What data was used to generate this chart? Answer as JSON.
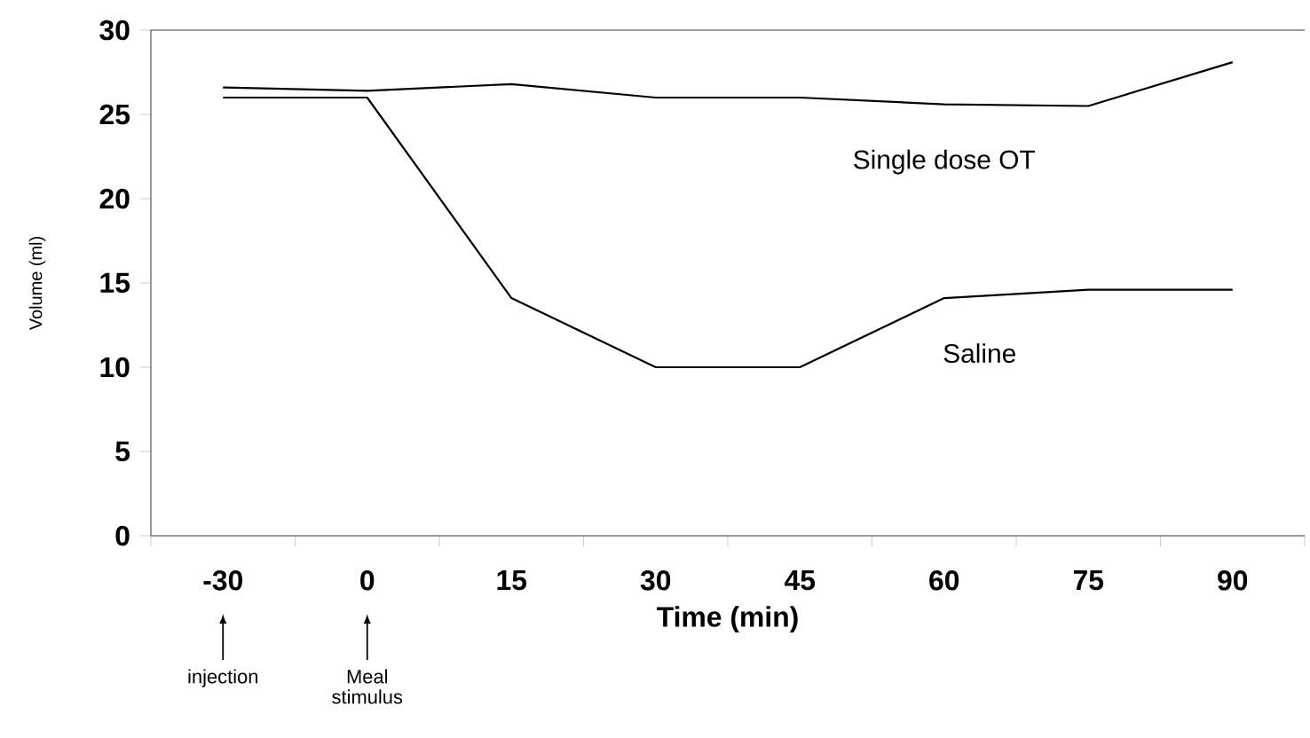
{
  "chart_data": {
    "type": "line",
    "xlabel": "Time (min)",
    "ylabel": "Volume (ml)",
    "categories": [
      "-30",
      "0",
      "15",
      "30",
      "45",
      "60",
      "75",
      "90"
    ],
    "series": [
      {
        "name": "Single dose OT",
        "color": "#000000",
        "values": [
          26.6,
          26.4,
          26.8,
          26.0,
          26.0,
          25.6,
          25.5,
          28.1
        ]
      },
      {
        "name": "Saline",
        "color": "#000000",
        "values": [
          26.0,
          26.0,
          14.1,
          10.0,
          10.0,
          14.1,
          14.6,
          14.6
        ]
      }
    ],
    "ylim": [
      0,
      30
    ],
    "yticks": [
      0,
      5,
      10,
      15,
      20,
      25,
      30
    ],
    "annotations": [
      "injection",
      "Meal stimulus"
    ],
    "grid": false,
    "legend": false,
    "marker": "none",
    "line_style": "solid"
  }
}
